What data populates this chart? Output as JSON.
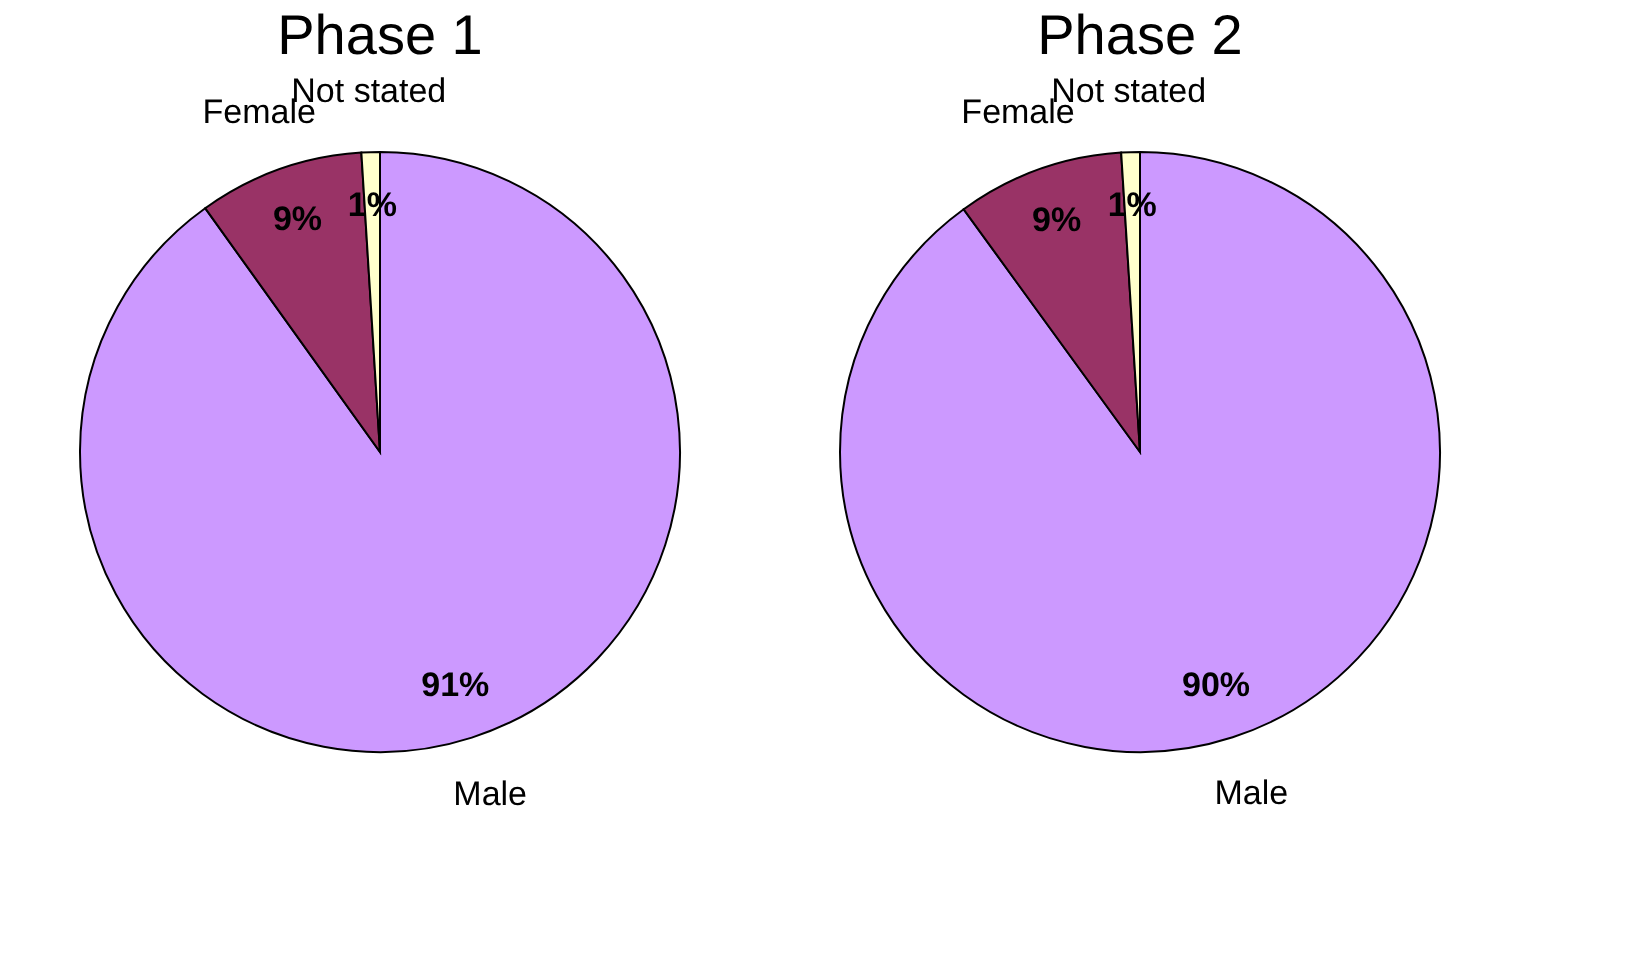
{
  "chart_data": [
    {
      "type": "pie",
      "title": "Phase 1",
      "categories": [
        "Male",
        "Female",
        "Not stated"
      ],
      "values": [
        91,
        9,
        1
      ],
      "colors": [
        "#cc99ff",
        "#993366",
        "#ffffcc"
      ],
      "value_labels": [
        "91%",
        "9%",
        "1%"
      ],
      "legend": false
    },
    {
      "type": "pie",
      "title": "Phase 2",
      "categories": [
        "Male",
        "Female",
        "Not stated"
      ],
      "values": [
        90,
        9,
        1
      ],
      "colors": [
        "#cc99ff",
        "#993366",
        "#ffffcc"
      ],
      "value_labels": [
        "90%",
        "9%",
        "1%"
      ],
      "legend": false
    }
  ]
}
